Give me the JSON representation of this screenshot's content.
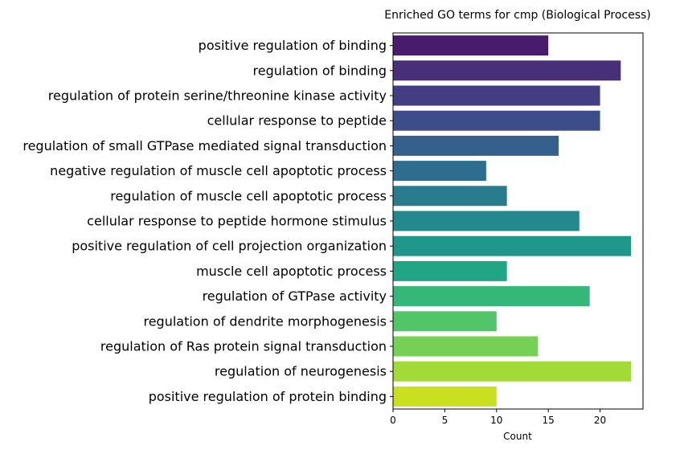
{
  "chart_data": {
    "type": "bar",
    "orientation": "horizontal",
    "title": "Enriched GO terms for cmp (Biological Process)",
    "xlabel": "Count",
    "ylabel": "",
    "xlim": [
      0,
      24.15
    ],
    "xticks": [
      0,
      5,
      10,
      15,
      20
    ],
    "grid": false,
    "categories": [
      "positive regulation of binding",
      "regulation of binding",
      "regulation of protein serine/threonine kinase activity",
      "cellular response to peptide",
      "regulation of small GTPase mediated signal transduction",
      "negative regulation of muscle cell apoptotic process",
      "regulation of muscle cell apoptotic process",
      "cellular response to peptide hormone stimulus",
      "positive regulation of cell projection organization",
      "muscle cell apoptotic process",
      "regulation of GTPase activity",
      "regulation of dendrite morphogenesis",
      "regulation of Ras protein signal transduction",
      "regulation of neurogenesis",
      "positive regulation of protein binding"
    ],
    "values": [
      15,
      22,
      20,
      20,
      16,
      9,
      11,
      18,
      23,
      11,
      19,
      10,
      14,
      23,
      10
    ],
    "colors": [
      "#481b6d",
      "#482f7a",
      "#433d84",
      "#3d4d8a",
      "#355f8d",
      "#2f6d8e",
      "#2a7b8e",
      "#23898e",
      "#1f978b",
      "#21a685",
      "#35b779",
      "#52c569",
      "#75d054",
      "#a2da37",
      "#c8e020"
    ]
  }
}
